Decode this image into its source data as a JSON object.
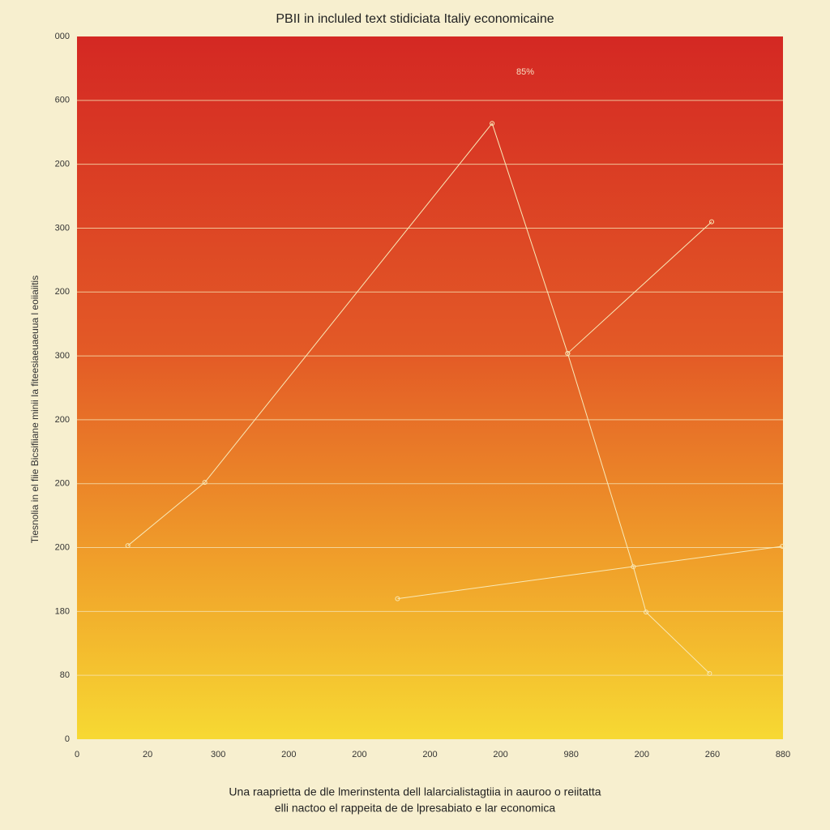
{
  "chart_data": {
    "type": "line",
    "title": "PBII in incluled text stidiciata Italiy economicaine",
    "y_label": "Tiesnolia in el fiie Bicsifiiane minii Ia fiteesiaeuaeuua l eoiiaiitis",
    "caption": [
      "Una raaprietta de dle lmerinstenta dell lalarcialistagtiia in aauroo o reiitatta",
      "elli nactoo el rappeita de de lpresabiato e lar economica"
    ],
    "annotations": [
      "85%"
    ],
    "xlim": [
      0,
      10
    ],
    "xticks": [
      {
        "value": 0,
        "label": "0"
      },
      {
        "value": 1,
        "label": "20"
      },
      {
        "value": 2,
        "label": "300"
      },
      {
        "value": 3,
        "label": "200"
      },
      {
        "value": 4,
        "label": "200"
      },
      {
        "value": 5,
        "label": "200"
      },
      {
        "value": 6,
        "label": "200"
      },
      {
        "value": 7,
        "label": "980"
      },
      {
        "value": 8,
        "label": "200"
      },
      {
        "value": 9,
        "label": "260"
      },
      {
        "value": 10,
        "label": "880"
      }
    ],
    "ylim": [
      0,
      11
    ],
    "yticks": [
      {
        "value": 0,
        "label": "0"
      },
      {
        "value": 1,
        "label": "80"
      },
      {
        "value": 2,
        "label": "180"
      },
      {
        "value": 3,
        "label": "200"
      },
      {
        "value": 4,
        "label": "200"
      },
      {
        "value": 5,
        "label": "200"
      },
      {
        "value": 6,
        "label": "300"
      },
      {
        "value": 7,
        "label": "200"
      },
      {
        "value": 8,
        "label": "300"
      },
      {
        "value": 9,
        "label": "200"
      },
      {
        "value": 10,
        "label": "600"
      },
      {
        "value": 11,
        "label": "000"
      }
    ],
    "grid": true,
    "series": [
      {
        "color": "#f8e9b8",
        "x": [
          0.72,
          1.81,
          5.88,
          6.95,
          7.88,
          8.06,
          8.96
        ],
        "values": [
          3.03,
          4.02,
          9.64,
          6.04,
          2.7,
          1.99,
          1.03
        ]
      },
      {
        "color": "#f8e9b8",
        "x": [
          6.95,
          8.99
        ],
        "values": [
          6.04,
          8.1
        ]
      },
      {
        "color": "#f8e9b8",
        "x": [
          4.54,
          9.99
        ],
        "values": [
          2.2,
          3.02
        ]
      }
    ]
  }
}
